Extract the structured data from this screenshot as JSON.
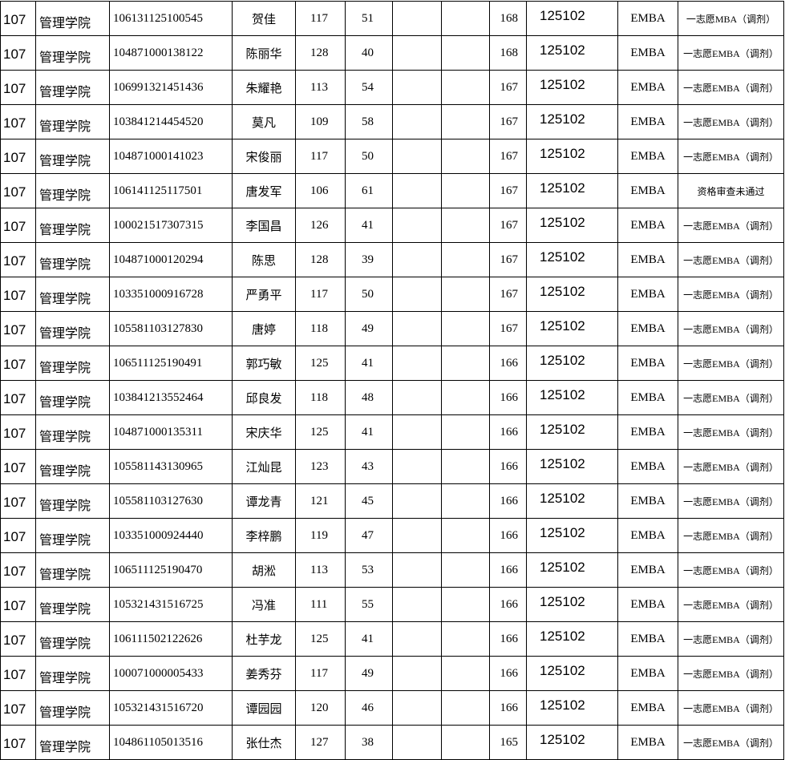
{
  "table": {
    "rows": [
      [
        "107",
        "管理学院",
        "106131125100545",
        "贺佳",
        117,
        51,
        168,
        "125102",
        "EMBA",
        "一志愿MBA（调剂）"
      ],
      [
        "107",
        "管理学院",
        "104871000138122",
        "陈丽华",
        128,
        40,
        168,
        "125102",
        "EMBA",
        "一志愿EMBA（调剂）"
      ],
      [
        "107",
        "管理学院",
        "106991321451436",
        "朱耀艳",
        113,
        54,
        167,
        "125102",
        "EMBA",
        "一志愿EMBA（调剂）"
      ],
      [
        "107",
        "管理学院",
        "103841214454520",
        "莫凡",
        109,
        58,
        167,
        "125102",
        "EMBA",
        "一志愿EMBA（调剂）"
      ],
      [
        "107",
        "管理学院",
        "104871000141023",
        "宋俊丽",
        117,
        50,
        167,
        "125102",
        "EMBA",
        "一志愿EMBA（调剂）"
      ],
      [
        "107",
        "管理学院",
        "106141125117501",
        "唐发军",
        106,
        61,
        167,
        "125102",
        "EMBA",
        "资格审查未通过"
      ],
      [
        "107",
        "管理学院",
        "100021517307315",
        "李国昌",
        126,
        41,
        167,
        "125102",
        "EMBA",
        "一志愿EMBA（调剂）"
      ],
      [
        "107",
        "管理学院",
        "104871000120294",
        "陈思",
        128,
        39,
        167,
        "125102",
        "EMBA",
        "一志愿EMBA（调剂）"
      ],
      [
        "107",
        "管理学院",
        "103351000916728",
        "严勇平",
        117,
        50,
        167,
        "125102",
        "EMBA",
        "一志愿EMBA（调剂）"
      ],
      [
        "107",
        "管理学院",
        "105581103127830",
        "唐婷",
        118,
        49,
        167,
        "125102",
        "EMBA",
        "一志愿EMBA（调剂）"
      ],
      [
        "107",
        "管理学院",
        "106511125190491",
        "郭巧敏",
        125,
        41,
        166,
        "125102",
        "EMBA",
        "一志愿EMBA（调剂）"
      ],
      [
        "107",
        "管理学院",
        "103841213552464",
        "邱良发",
        118,
        48,
        166,
        "125102",
        "EMBA",
        "一志愿EMBA（调剂）"
      ],
      [
        "107",
        "管理学院",
        "104871000135311",
        "宋庆华",
        125,
        41,
        166,
        "125102",
        "EMBA",
        "一志愿EMBA（调剂）"
      ],
      [
        "107",
        "管理学院",
        "105581143130965",
        "江灿昆",
        123,
        43,
        166,
        "125102",
        "EMBA",
        "一志愿EMBA（调剂）"
      ],
      [
        "107",
        "管理学院",
        "105581103127630",
        "谭龙青",
        121,
        45,
        166,
        "125102",
        "EMBA",
        "一志愿EMBA（调剂）"
      ],
      [
        "107",
        "管理学院",
        "103351000924440",
        "李梓鹏",
        119,
        47,
        166,
        "125102",
        "EMBA",
        "一志愿EMBA（调剂）"
      ],
      [
        "107",
        "管理学院",
        "106511125190470",
        "胡淞",
        113,
        53,
        166,
        "125102",
        "EMBA",
        "一志愿EMBA（调剂）"
      ],
      [
        "107",
        "管理学院",
        "105321431516725",
        "冯准",
        111,
        55,
        166,
        "125102",
        "EMBA",
        "一志愿EMBA（调剂）"
      ],
      [
        "107",
        "管理学院",
        "106111502122626",
        "杜芋龙",
        125,
        41,
        166,
        "125102",
        "EMBA",
        "一志愿EMBA（调剂）"
      ],
      [
        "107",
        "管理学院",
        "100071000005433",
        "姜秀芬",
        117,
        49,
        166,
        "125102",
        "EMBA",
        "一志愿EMBA（调剂）"
      ],
      [
        "107",
        "管理学院",
        "105321431516720",
        "谭园园",
        120,
        46,
        166,
        "125102",
        "EMBA",
        "一志愿EMBA（调剂）"
      ],
      [
        "107",
        "管理学院",
        "104861105013516",
        "张仕杰",
        127,
        38,
        165,
        "125102",
        "EMBA",
        "一志愿EMBA（调剂）"
      ]
    ]
  }
}
